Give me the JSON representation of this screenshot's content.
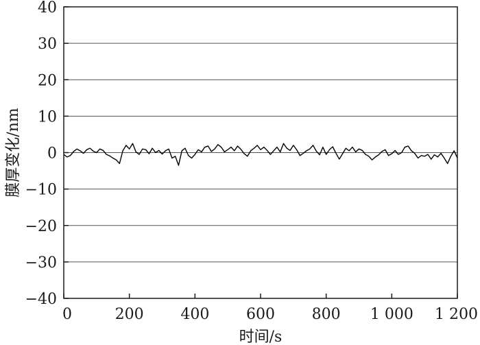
{
  "chart_data": {
    "type": "line",
    "title": "",
    "xlabel": "时间/s",
    "ylabel": "膜厚变化/nm",
    "xlim": [
      0,
      1200
    ],
    "ylim": [
      -40,
      40
    ],
    "xticks": [
      0,
      200,
      400,
      600,
      800,
      1000,
      1200
    ],
    "xtick_labels": [
      "0",
      "200",
      "400",
      "600",
      "800",
      "1 000",
      "1 200"
    ],
    "yticks": [
      40,
      30,
      20,
      10,
      0,
      -10,
      -20,
      -30,
      -40
    ],
    "ytick_labels": [
      "40",
      "30",
      "20",
      "10",
      "0",
      "−10",
      "−20",
      "−30",
      "−40"
    ],
    "grid": "horizontal",
    "series": [
      {
        "values_x": [
          0,
          10,
          20,
          30,
          40,
          50,
          60,
          70,
          80,
          90,
          100,
          110,
          120,
          130,
          140,
          150,
          160,
          170,
          180,
          190,
          200,
          210,
          220,
          230,
          240,
          250,
          260,
          270,
          280,
          290,
          300,
          310,
          320,
          330,
          340,
          350,
          360,
          370,
          380,
          390,
          400,
          410,
          420,
          430,
          440,
          450,
          460,
          470,
          480,
          490,
          500,
          510,
          520,
          530,
          540,
          550,
          560,
          570,
          580,
          590,
          600,
          610,
          620,
          630,
          640,
          650,
          660,
          670,
          680,
          690,
          700,
          710,
          720,
          730,
          740,
          750,
          760,
          770,
          780,
          790,
          800,
          810,
          820,
          830,
          840,
          850,
          860,
          870,
          880,
          890,
          900,
          910,
          920,
          930,
          940,
          950,
          960,
          970,
          980,
          990,
          1000,
          1010,
          1020,
          1030,
          1040,
          1050,
          1060,
          1070,
          1080,
          1090,
          1100,
          1110,
          1120,
          1130,
          1140,
          1150,
          1160,
          1170,
          1180,
          1190,
          1200
        ],
        "values_y": [
          -0.5,
          -1.2,
          -0.8,
          0.3,
          1.0,
          0.5,
          -0.2,
          0.8,
          1.2,
          0.4,
          0.0,
          1.0,
          0.6,
          -0.5,
          -0.9,
          -1.5,
          -2.0,
          -3.0,
          0.5,
          2.0,
          1.0,
          2.5,
          0.2,
          -0.5,
          1.0,
          0.8,
          -0.3,
          1.2,
          0.0,
          0.6,
          -0.4,
          0.5,
          1.0,
          -1.5,
          -1.0,
          -3.5,
          0.5,
          1.2,
          -0.8,
          -1.5,
          -0.5,
          0.8,
          0.2,
          1.5,
          1.8,
          0.3,
          1.0,
          2.2,
          1.5,
          0.2,
          0.8,
          1.5,
          0.5,
          1.8,
          0.9,
          -0.3,
          -1.0,
          0.5,
          1.2,
          2.0,
          0.8,
          1.5,
          0.6,
          -0.5,
          0.5,
          1.5,
          0.2,
          2.5,
          1.2,
          0.6,
          2.0,
          0.8,
          -0.8,
          -0.2,
          0.5,
          1.0,
          2.0,
          0.4,
          -0.6,
          1.5,
          -0.5,
          0.8,
          1.6,
          -0.2,
          -1.8,
          -0.3,
          1.2,
          0.5,
          1.5,
          0.2,
          1.0,
          0.6,
          -0.5,
          -1.0,
          -2.0,
          -1.2,
          -0.6,
          0.3,
          0.8,
          -0.8,
          -0.3,
          0.6,
          -0.5,
          0.0,
          1.5,
          1.8,
          0.5,
          -0.2,
          -1.5,
          -0.8,
          -1.0,
          -0.5,
          -1.8,
          -0.6,
          -1.2,
          -0.2,
          -1.5,
          -3.0,
          -1.0,
          0.5,
          -1.5
        ]
      }
    ]
  }
}
